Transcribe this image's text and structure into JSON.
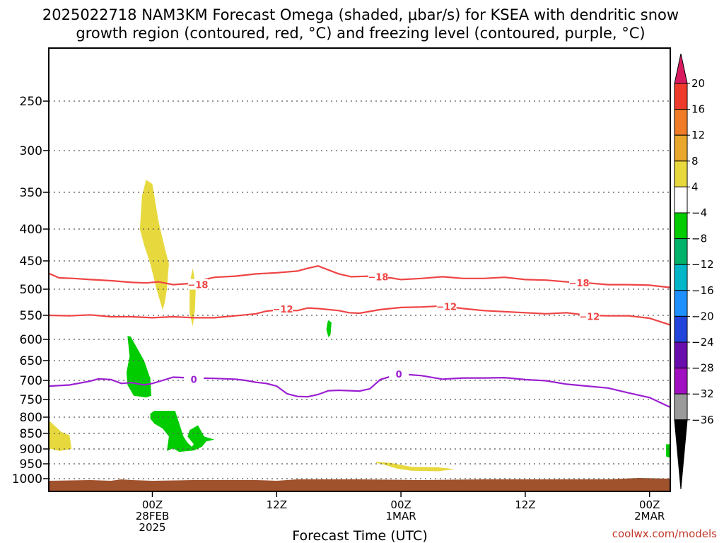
{
  "chart_data": {
    "type": "heatmap",
    "title_line1": "2025022718 NAM3KM Forecast Omega (shaded, μbar/s) for KSEA with dendritic snow",
    "title_line2": "growth region (contoured, red, °C) and freezing level (contoured, purple, °C)",
    "xlabel": "Forecast Time (UTC)",
    "credit": "coolwx.com/models",
    "x_hours_range": [
      -5,
      25
    ],
    "y_range_hpa": [
      1020,
      200
    ],
    "y_ticks": [
      250,
      300,
      350,
      400,
      450,
      500,
      550,
      600,
      650,
      700,
      750,
      800,
      850,
      900,
      950,
      1000
    ],
    "x_ticks": [
      {
        "h": 0,
        "lines": [
          "00Z",
          "28FEB",
          "2025"
        ]
      },
      {
        "h": 6,
        "lines": [
          "12Z"
        ]
      },
      {
        "h": 12,
        "lines": [
          "00Z",
          "1MAR"
        ]
      },
      {
        "h": 18,
        "lines": [
          "12Z"
        ]
      },
      {
        "h": 24,
        "lines": [
          "00Z",
          "2MAR"
        ]
      }
    ],
    "colorbar": {
      "labels": [
        "20",
        "16",
        "12",
        "8",
        "4",
        "-4",
        "-8",
        "-12",
        "-16",
        "-20",
        "-24",
        "-28",
        "-32",
        "-36"
      ],
      "colors": [
        "#d81b60",
        "#ef3b2c",
        "#f07c28",
        "#e9a72c",
        "#e7d93d",
        "#ffffff",
        "#00cc00",
        "#00b36b",
        "#00b7c9",
        "#1e90ff",
        "#2244dd",
        "#6a0dad",
        "#a010c0",
        "#9a9a9a",
        "#000000"
      ]
    },
    "contours": [
      {
        "name": "-18",
        "color": "#ef4444",
        "points": [
          [
            -5,
            472
          ],
          [
            -4.5,
            480
          ],
          [
            -3.8,
            481
          ],
          [
            -3,
            483
          ],
          [
            -2,
            485
          ],
          [
            -1,
            488
          ],
          [
            -0.3,
            489
          ],
          [
            0.3,
            487
          ],
          [
            1,
            492
          ],
          [
            1.8,
            490
          ],
          [
            2.5,
            483
          ],
          [
            3,
            479
          ],
          [
            4,
            477
          ],
          [
            5,
            473
          ],
          [
            6,
            471
          ],
          [
            7,
            468
          ],
          [
            7.5,
            463
          ],
          [
            8,
            459
          ],
          [
            8.5,
            466
          ],
          [
            9,
            473
          ],
          [
            9.6,
            478
          ],
          [
            10.5,
            477
          ],
          [
            11.5,
            480
          ],
          [
            12,
            483
          ],
          [
            13,
            481
          ],
          [
            14,
            478
          ],
          [
            15,
            481
          ],
          [
            16,
            481
          ],
          [
            17,
            479
          ],
          [
            18,
            483
          ],
          [
            19,
            484
          ],
          [
            20,
            487
          ],
          [
            21,
            489
          ],
          [
            22,
            492
          ],
          [
            23,
            492
          ],
          [
            24,
            493
          ],
          [
            25,
            497
          ]
        ],
        "labels": [
          [
            2.2,
            492
          ],
          [
            10.9,
            478
          ],
          [
            20.6,
            489
          ]
        ]
      },
      {
        "name": "-12",
        "color": "#ef4444",
        "points": [
          [
            -5,
            550
          ],
          [
            -4,
            551
          ],
          [
            -3,
            549
          ],
          [
            -2,
            553
          ],
          [
            -1,
            553
          ],
          [
            0,
            555
          ],
          [
            1,
            553
          ],
          [
            2,
            555
          ],
          [
            3,
            555
          ],
          [
            3.5,
            553
          ],
          [
            4,
            551
          ],
          [
            5,
            547
          ],
          [
            5.5,
            542
          ],
          [
            6,
            540
          ],
          [
            7,
            541
          ],
          [
            7.5,
            536
          ],
          [
            8,
            537
          ],
          [
            9,
            541
          ],
          [
            9.5,
            545
          ],
          [
            10,
            546
          ],
          [
            11,
            539
          ],
          [
            12,
            535
          ],
          [
            13,
            534
          ],
          [
            14,
            532
          ],
          [
            15,
            537
          ],
          [
            16,
            541
          ],
          [
            17,
            543
          ],
          [
            18,
            545
          ],
          [
            19,
            547
          ],
          [
            20,
            545
          ],
          [
            21,
            550
          ],
          [
            22,
            551
          ],
          [
            23,
            551
          ],
          [
            24,
            556
          ],
          [
            25,
            570
          ]
        ],
        "labels": [
          [
            6.3,
            538
          ],
          [
            14.2,
            533
          ],
          [
            21.1,
            552
          ]
        ]
      },
      {
        "name": "0",
        "color": "#9b1fd1",
        "points": [
          [
            -5,
            715
          ],
          [
            -4,
            712
          ],
          [
            -3,
            702
          ],
          [
            -2.6,
            696
          ],
          [
            -2,
            698
          ],
          [
            -1.5,
            708
          ],
          [
            -1,
            706
          ],
          [
            -0.4,
            712
          ],
          [
            0,
            708
          ],
          [
            0.5,
            700
          ],
          [
            1,
            692
          ],
          [
            2,
            694
          ],
          [
            3,
            695
          ],
          [
            4,
            697
          ],
          [
            4.5,
            700
          ],
          [
            5,
            705
          ],
          [
            5.5,
            708
          ],
          [
            6,
            715
          ],
          [
            6.5,
            735
          ],
          [
            7,
            742
          ],
          [
            7.5,
            743
          ],
          [
            8,
            737
          ],
          [
            8.5,
            727
          ],
          [
            9,
            726
          ],
          [
            10,
            728
          ],
          [
            10.5,
            722
          ],
          [
            11,
            698
          ],
          [
            11.5,
            690
          ],
          [
            12,
            684
          ],
          [
            13,
            688
          ],
          [
            14,
            697
          ],
          [
            15,
            694
          ],
          [
            16,
            694
          ],
          [
            17,
            693
          ],
          [
            18,
            698
          ],
          [
            19,
            701
          ],
          [
            20,
            710
          ],
          [
            21,
            715
          ],
          [
            22,
            720
          ],
          [
            23,
            733
          ],
          [
            24,
            745
          ],
          [
            25,
            772
          ]
        ],
        "labels": [
          [
            2,
            697
          ],
          [
            11.9,
            684
          ]
        ]
      }
    ],
    "features": [
      {
        "value": "4 to 8",
        "color": "#e7d93d",
        "points": [
          [
            -0.6,
            400
          ],
          [
            -0.5,
            355
          ],
          [
            -0.3,
            335
          ],
          [
            0,
            340
          ],
          [
            0.3,
            390
          ],
          [
            0.6,
            430
          ],
          [
            0.8,
            455
          ],
          [
            0.7,
            500
          ],
          [
            0.6,
            525
          ],
          [
            0.5,
            540
          ],
          [
            0.2,
            500
          ],
          [
            -0.1,
            455
          ],
          [
            -0.4,
            425
          ]
        ]
      },
      {
        "value": "4 to 8",
        "color": "#e7d93d",
        "points": [
          [
            1.8,
            490
          ],
          [
            1.95,
            463
          ],
          [
            2.1,
            495
          ],
          [
            2.05,
            540
          ],
          [
            1.95,
            573
          ],
          [
            1.8,
            545
          ]
        ]
      },
      {
        "value": "4 to 8",
        "color": "#e7d93d",
        "points": [
          [
            -5,
            810
          ],
          [
            -4.4,
            845
          ],
          [
            -4,
            856
          ],
          [
            -3.9,
            900
          ],
          [
            -4.5,
            907
          ],
          [
            -5,
            898
          ]
        ]
      },
      {
        "value": "4 to 8",
        "color": "#e7d93d",
        "points": [
          [
            10.8,
            943
          ],
          [
            11.5,
            947
          ],
          [
            12.5,
            960
          ],
          [
            13.8,
            962
          ],
          [
            14.6,
            968
          ],
          [
            13.8,
            975
          ],
          [
            12.5,
            973
          ],
          [
            11.8,
            966
          ],
          [
            11.2,
            953
          ],
          [
            10.8,
            947
          ]
        ]
      },
      {
        "value": "-4 to -8",
        "color": "#00cc00",
        "points": [
          [
            -1.2,
            593
          ],
          [
            -1.05,
            594
          ],
          [
            -0.4,
            650
          ],
          [
            -0.1,
            695
          ],
          [
            -0.05,
            740
          ],
          [
            -0.3,
            745
          ],
          [
            -0.9,
            740
          ],
          [
            -1.2,
            712
          ],
          [
            -1.25,
            680
          ],
          [
            -1.1,
            640
          ]
        ]
      },
      {
        "value": "-4 to -8",
        "color": "#00cc00",
        "points": [
          [
            -0.1,
            790
          ],
          [
            0.1,
            782
          ],
          [
            1.1,
            782
          ],
          [
            1.3,
            820
          ],
          [
            1.5,
            860
          ],
          [
            1.7,
            880
          ],
          [
            1.9,
            893
          ],
          [
            2,
            885
          ],
          [
            1.7,
            860
          ],
          [
            1.8,
            840
          ],
          [
            2.2,
            825
          ],
          [
            2.5,
            860
          ],
          [
            2.8,
            866
          ],
          [
            3.0,
            870
          ],
          [
            2.6,
            876
          ],
          [
            2.4,
            893
          ],
          [
            2,
            905
          ],
          [
            1.3,
            910
          ],
          [
            1,
            898
          ],
          [
            0.7,
            907
          ],
          [
            0.8,
            860
          ],
          [
            0.5,
            835
          ],
          [
            0.1,
            820
          ],
          [
            -0.1,
            805
          ]
        ]
      },
      {
        "value": "-4 to -8",
        "color": "#00cc00",
        "points": [
          [
            8.5,
            560
          ],
          [
            8.65,
            565
          ],
          [
            8.6,
            590
          ],
          [
            8.5,
            596
          ],
          [
            8.4,
            580
          ],
          [
            8.45,
            565
          ]
        ]
      },
      {
        "value": "-4 to -8",
        "color": "#00cc00",
        "points": [
          [
            24.8,
            885
          ],
          [
            25,
            885
          ],
          [
            25,
            930
          ],
          [
            24.8,
            925
          ]
        ]
      }
    ]
  }
}
